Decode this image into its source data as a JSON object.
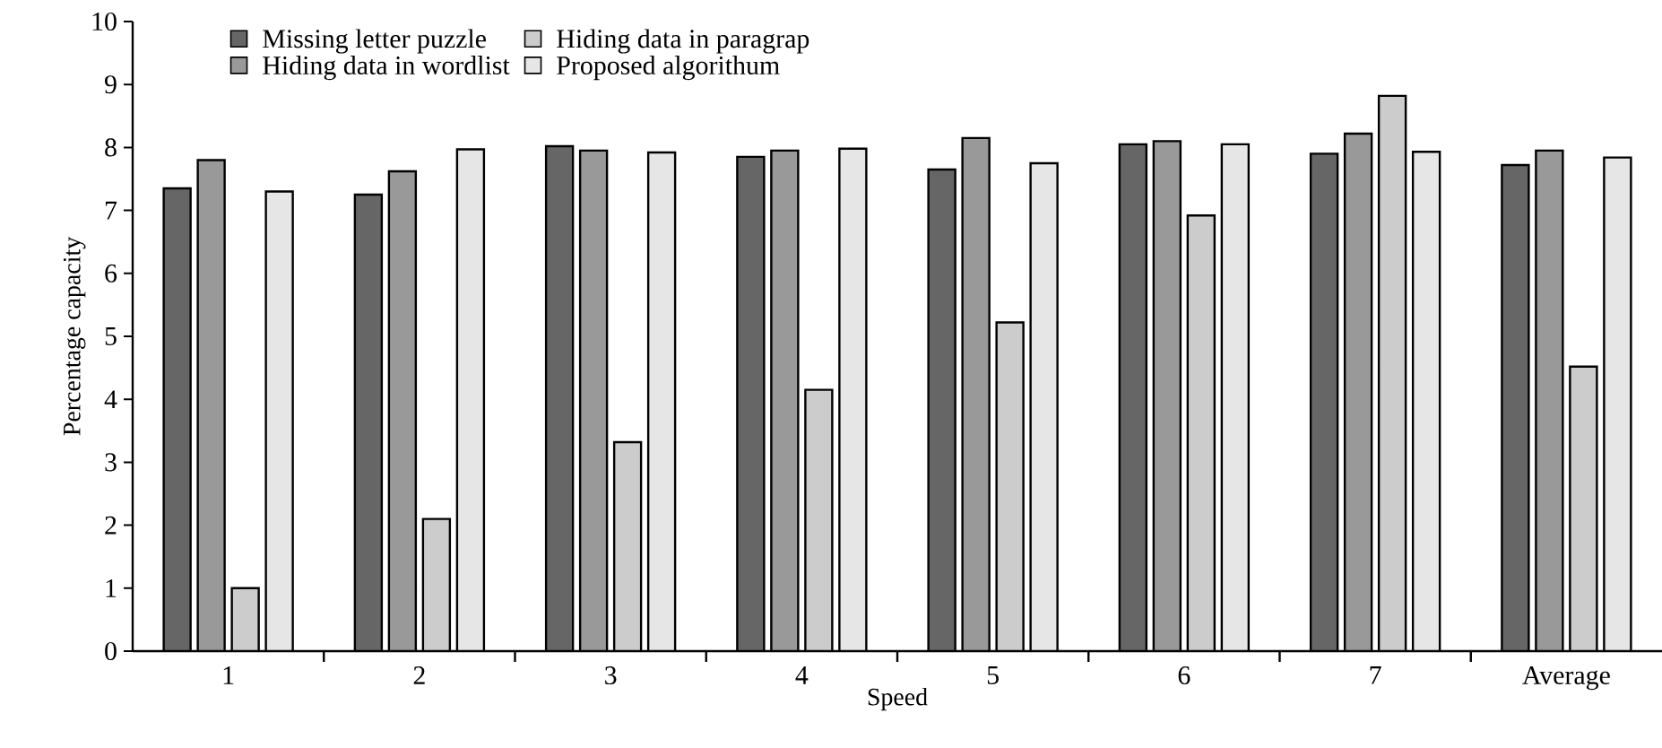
{
  "chart_data": {
    "type": "bar",
    "xlabel": "Speed",
    "ylabel": "Percentage capacity",
    "categories": [
      "1",
      "2",
      "3",
      "4",
      "5",
      "6",
      "7",
      "Average"
    ],
    "ylim": [
      0,
      10
    ],
    "yticks": [
      0,
      1,
      2,
      3,
      4,
      5,
      6,
      7,
      8,
      9,
      10
    ],
    "legend": "top left",
    "grid": false,
    "series": [
      {
        "name": "Missing letter puzzle",
        "color": "#666666",
        "values": [
          7.35,
          7.25,
          8.02,
          7.85,
          7.65,
          8.05,
          7.9,
          7.72
        ]
      },
      {
        "name": "Hiding data in wordlist",
        "color": "#999999",
        "values": [
          7.8,
          7.62,
          7.95,
          7.95,
          8.15,
          8.1,
          8.22,
          7.95
        ]
      },
      {
        "name": "Hiding data in paragrap",
        "color": "#cccccc",
        "values": [
          1.0,
          2.1,
          3.32,
          4.15,
          5.22,
          6.92,
          8.82,
          4.52
        ]
      },
      {
        "name": "Proposed algorithum",
        "color": "#e6e6e6",
        "values": [
          7.3,
          7.97,
          7.92,
          7.98,
          7.75,
          8.05,
          7.93,
          7.84
        ]
      }
    ]
  }
}
